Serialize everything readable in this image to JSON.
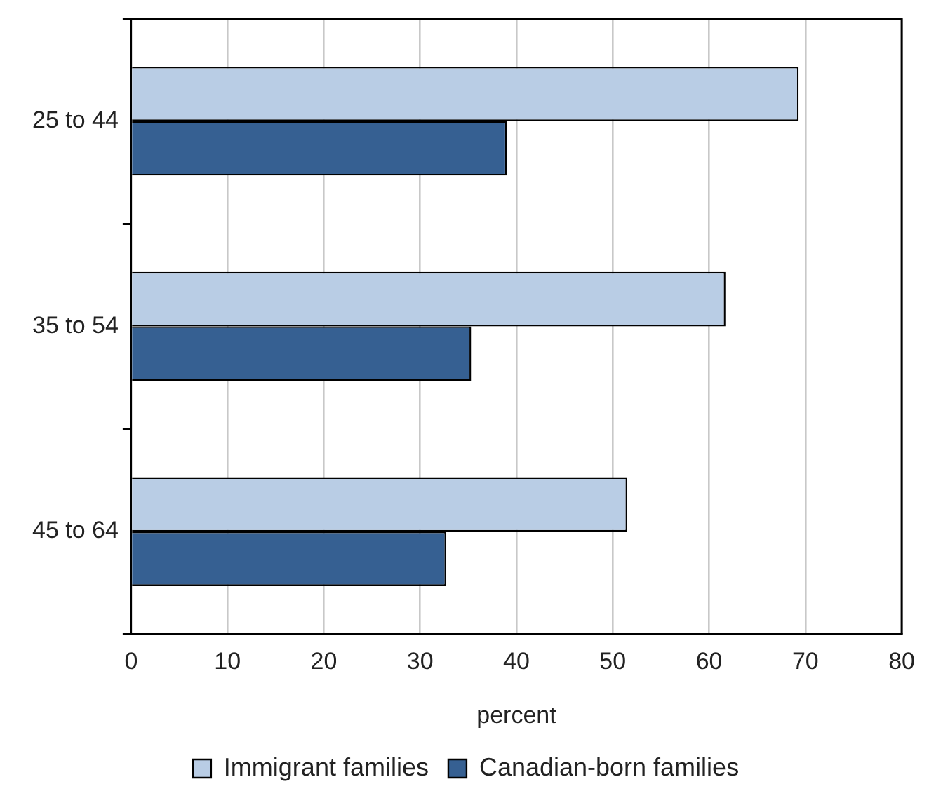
{
  "chart_data": {
    "type": "bar",
    "orientation": "horizontal",
    "categories": [
      "25 to 44",
      "35 to 54",
      "45 to 64"
    ],
    "series": [
      {
        "name": "Immigrant families",
        "color": "#b9cde5",
        "values": [
          69.3,
          61.7,
          51.5
        ]
      },
      {
        "name": "Canadian-born families",
        "color": "#366092",
        "values": [
          39.0,
          35.3,
          32.7
        ]
      }
    ],
    "xlabel": "percent",
    "xlim": [
      0,
      80
    ],
    "xticks": [
      0,
      10,
      20,
      30,
      40,
      50,
      60,
      70,
      80
    ],
    "grid": "x",
    "legend": "bottom"
  }
}
